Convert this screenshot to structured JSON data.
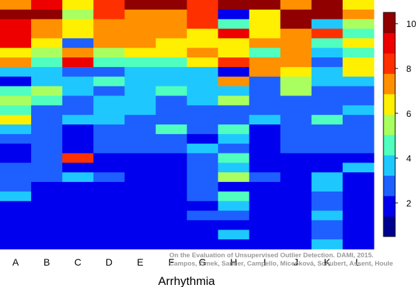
{
  "chart_data": {
    "type": "heatmap",
    "xlabel": "Arrhythmia",
    "categories": [
      "A",
      "B",
      "C",
      "D",
      "E",
      "F",
      "G",
      "H",
      "I",
      "J",
      "K",
      "L"
    ],
    "row_count": 26,
    "columns": [
      [
        7,
        10,
        9,
        9,
        9,
        6,
        7,
        3,
        1,
        4,
        5,
        4,
        6,
        3,
        2,
        1,
        1,
        2,
        2,
        2,
        3,
        1,
        1,
        1,
        1,
        1
      ],
      [
        9,
        10,
        7,
        7,
        6,
        5,
        4,
        3,
        3,
        5,
        4,
        2,
        2,
        2,
        2,
        2,
        2,
        2,
        2,
        1,
        1,
        1,
        1,
        1,
        1,
        1
      ],
      [
        6,
        5,
        6,
        6,
        2,
        7,
        9,
        2,
        3,
        3,
        2,
        2,
        3,
        1,
        1,
        1,
        8,
        1,
        3,
        1,
        1,
        1,
        1,
        1,
        1,
        1
      ],
      [
        8,
        8,
        7,
        7,
        7,
        5,
        4,
        2,
        4,
        2,
        3,
        3,
        3,
        2,
        2,
        2,
        1,
        1,
        2,
        1,
        1,
        1,
        1,
        1,
        1,
        1
      ],
      [
        10,
        7,
        7,
        7,
        7,
        6,
        4,
        3,
        3,
        3,
        3,
        3,
        2,
        2,
        2,
        2,
        1,
        1,
        1,
        1,
        1,
        1,
        1,
        1,
        1,
        1
      ],
      [
        10,
        7,
        7,
        7,
        6,
        6,
        4,
        3,
        3,
        4,
        2,
        2,
        2,
        4,
        2,
        2,
        1,
        1,
        1,
        1,
        1,
        1,
        1,
        1,
        1,
        1
      ],
      [
        8,
        8,
        8,
        6,
        6,
        7,
        6,
        3,
        3,
        3,
        3,
        2,
        2,
        2,
        1,
        3,
        2,
        2,
        2,
        2,
        2,
        1,
        2,
        1,
        1,
        1
      ],
      [
        10,
        1,
        4,
        9,
        6,
        6,
        8,
        1,
        7,
        3,
        5,
        2,
        2,
        4,
        3,
        2,
        4,
        3,
        5,
        1,
        4,
        3,
        2,
        1,
        3,
        1
      ],
      [
        10,
        6,
        6,
        6,
        7,
        4,
        7,
        7,
        2,
        2,
        2,
        2,
        3,
        1,
        1,
        1,
        1,
        1,
        2,
        1,
        1,
        1,
        1,
        1,
        1,
        1
      ],
      [
        7,
        10,
        10,
        7,
        7,
        7,
        7,
        6,
        5,
        5,
        2,
        2,
        2,
        2,
        2,
        2,
        1,
        1,
        1,
        1,
        1,
        1,
        1,
        1,
        1,
        1
      ],
      [
        10,
        10,
        3,
        8,
        4,
        3,
        2,
        3,
        3,
        2,
        2,
        2,
        4,
        2,
        2,
        2,
        1,
        1,
        3,
        3,
        2,
        2,
        3,
        2,
        2,
        3
      ],
      [
        6,
        7,
        5,
        4,
        6,
        4,
        6,
        6,
        3,
        2,
        2,
        3,
        2,
        2,
        2,
        2,
        1,
        3,
        1,
        1,
        1,
        1,
        1,
        1,
        1,
        1
      ]
    ],
    "colorbar": {
      "min": 0.5,
      "max": 10.5,
      "ticks": [
        2,
        4,
        6,
        8,
        10
      ]
    },
    "grid": false
  },
  "watermark": {
    "line1": "On the Evaluation of Unsupervised Outlier Detection. DAMI, 2015.",
    "line2": "Campos, Zimek, Sander, Campello, Micenková, Schubert, Assent, Houle"
  },
  "colors": {
    "palette": [
      "#00008f",
      "#0000ee",
      "#1e60ff",
      "#1ec8ff",
      "#50ffbf",
      "#aaff60",
      "#ffef00",
      "#ff9000",
      "#ff3000",
      "#ee0000",
      "#900000"
    ]
  }
}
